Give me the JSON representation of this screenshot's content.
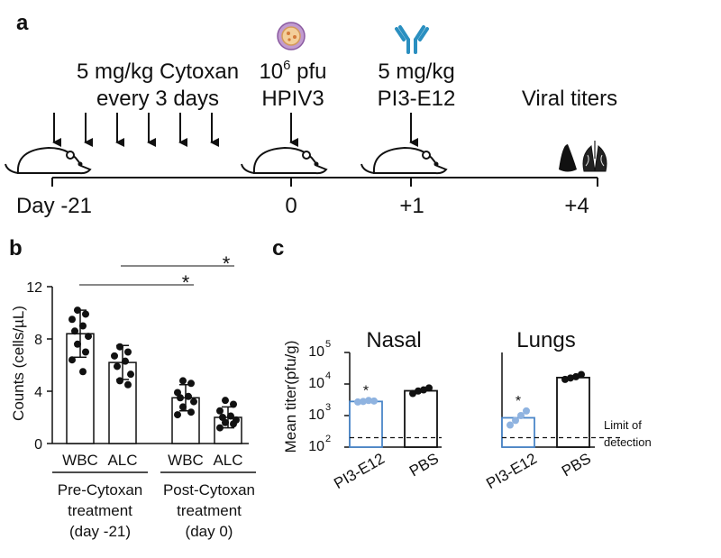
{
  "panel_a": {
    "letter": "a",
    "cytoxan_line1": "5 mg/kg Cytoxan",
    "cytoxan_line2": "every 3 days",
    "virus_dose_base": "10",
    "virus_dose_exp": "6",
    "virus_dose_unit": " pfu",
    "virus_name": "HPIV3",
    "antibody_dose": "5 mg/kg",
    "antibody_name": "PI3-E12",
    "readout": "Viral titers",
    "timeline": [
      "Day -21",
      "0",
      "+1",
      "+4"
    ]
  },
  "panel_b_letter": "b",
  "panel_c_letter": "c",
  "chart_data": [
    {
      "panel": "b",
      "type": "bar",
      "ylabel": "Counts (cells/µL)",
      "ylim": [
        0,
        12
      ],
      "yticks": [
        "0",
        "4",
        "8",
        "12"
      ],
      "categories": [
        "WBC",
        "ALC",
        "WBC",
        "ALC"
      ],
      "group_labels": [
        [
          "Pre-Cytoxan",
          "treatment",
          "(day -21)"
        ],
        [
          "Post-Cytoxan",
          "treatment",
          "(day 0)"
        ]
      ],
      "values": [
        8.4,
        6.2,
        3.5,
        2.0
      ],
      "errors": [
        1.8,
        1.3,
        1.0,
        0.8
      ],
      "points": [
        [
          10.2,
          9.9,
          9.5,
          9.0,
          8.6,
          8.2,
          7.6,
          7.0,
          6.4,
          5.5
        ],
        [
          7.4,
          7.0,
          6.7,
          6.3,
          5.9,
          5.3,
          4.8,
          4.5
        ],
        [
          4.8,
          4.6,
          3.9,
          3.6,
          3.5,
          3.2,
          2.8,
          2.4,
          2.2
        ],
        [
          3.3,
          3.0,
          2.5,
          2.1,
          2.0,
          1.8,
          1.6,
          1.5,
          1.2
        ]
      ],
      "significance": [
        "*",
        "*"
      ]
    },
    {
      "panel": "c",
      "type": "bar",
      "ylabel": "Mean titer(pfu/g)",
      "yscale": "log",
      "ylim_exp": [
        2,
        5
      ],
      "ytick_base": "10",
      "ytick_exps": [
        "2",
        "3",
        "4",
        "5"
      ],
      "limit_of_detection": 200,
      "lod_label": [
        "Limit of",
        "detection"
      ],
      "subplots": [
        {
          "title": "Nasal",
          "categories": [
            "PI3-E12",
            "PBS"
          ],
          "values": [
            2800,
            6100
          ],
          "points": [
            [
              2700,
              2800,
              3000,
              2900
            ],
            [
              5000,
              6000,
              6500,
              7500
            ]
          ],
          "colors": [
            "#4a86c8",
            "#111111"
          ],
          "significance": [
            "*",
            ""
          ]
        },
        {
          "title": "Lungs",
          "categories": [
            "PI3-E12",
            "PBS"
          ],
          "values": [
            850,
            16000
          ],
          "points": [
            [
              500,
              700,
              1000,
              1400
            ],
            [
              14000,
              15500,
              17000,
              20000
            ]
          ],
          "colors": [
            "#4a86c8",
            "#111111"
          ],
          "significance": [
            "*",
            ""
          ]
        }
      ]
    }
  ]
}
